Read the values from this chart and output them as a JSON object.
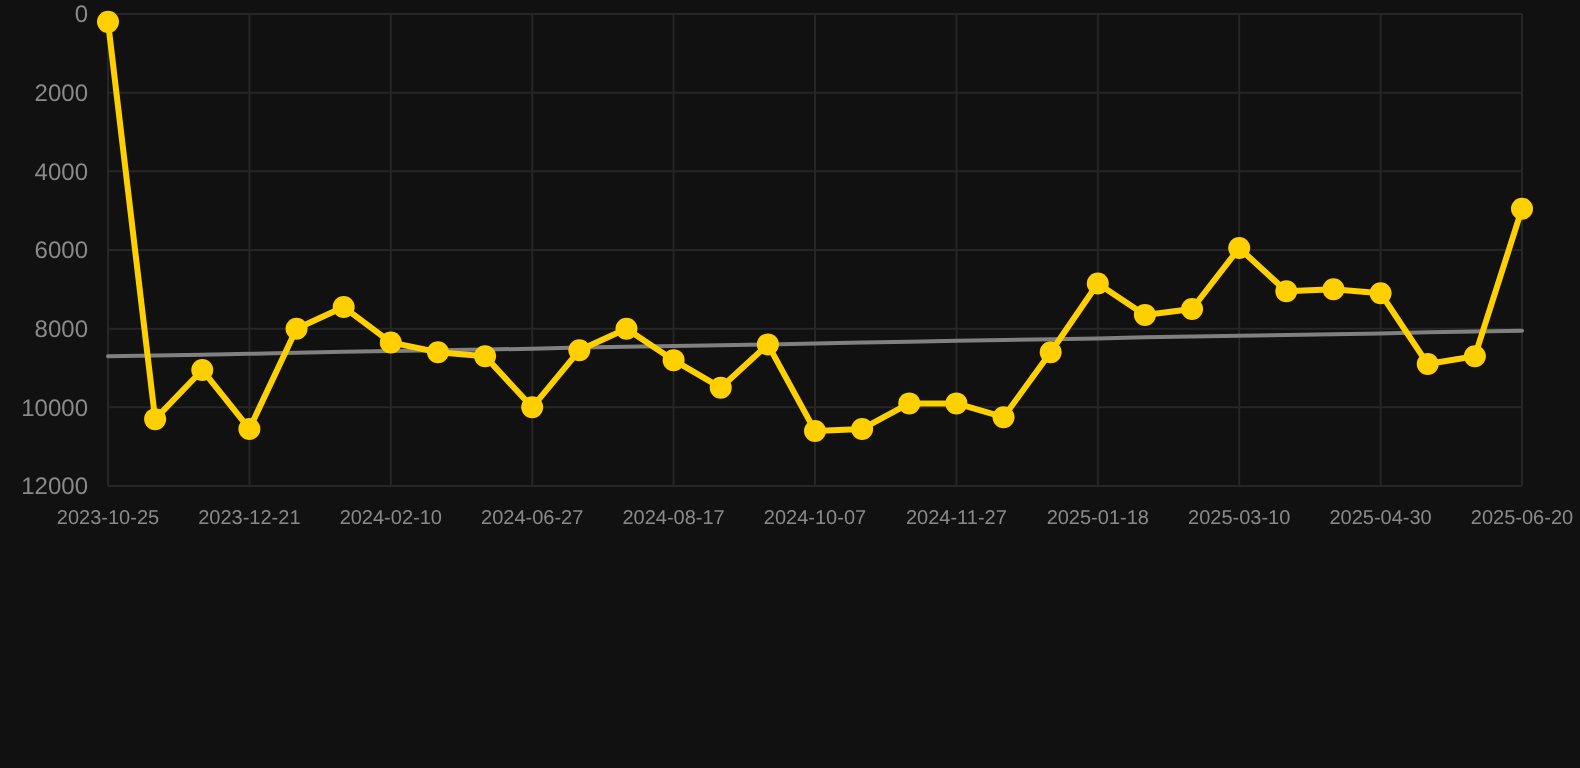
{
  "chart_data": {
    "type": "line",
    "categories": [
      "2023-10-25",
      null,
      null,
      "2023-12-21",
      null,
      null,
      "2024-02-10",
      null,
      null,
      "2024-06-27",
      null,
      null,
      "2024-08-17",
      null,
      null,
      "2024-10-07",
      null,
      null,
      "2024-11-27",
      null,
      null,
      "2025-01-18",
      null,
      null,
      "2025-03-10",
      null,
      null,
      "2025-04-30",
      null,
      null,
      "2025-06-20"
    ],
    "series": [
      {
        "color": "#ffd000",
        "marker": "circle",
        "values": [
          200,
          10300,
          9050,
          10550,
          8000,
          7450,
          8350,
          8600,
          8700,
          10000,
          8550,
          8000,
          8800,
          9500,
          8400,
          10600,
          10550,
          9900,
          9900,
          10250,
          8600,
          6850,
          7650,
          7500,
          5950,
          7050,
          7000,
          7100,
          8900,
          8700,
          4950
        ]
      },
      {
        "type": "line",
        "color": "#808080",
        "marker": "none",
        "values": [
          8700,
          8680,
          8660,
          8640,
          8610,
          8590,
          8570,
          8550,
          8530,
          8510,
          8480,
          8460,
          8440,
          8420,
          8400,
          8380,
          8350,
          8330,
          8310,
          8290,
          8270,
          8250,
          8220,
          8200,
          8180,
          8160,
          8140,
          8120,
          8090,
          8070,
          8050
        ]
      }
    ],
    "ylim": [
      12000,
      0
    ],
    "yticks": [
      0,
      2000,
      4000,
      6000,
      8000,
      10000,
      12000
    ],
    "grid": true
  }
}
